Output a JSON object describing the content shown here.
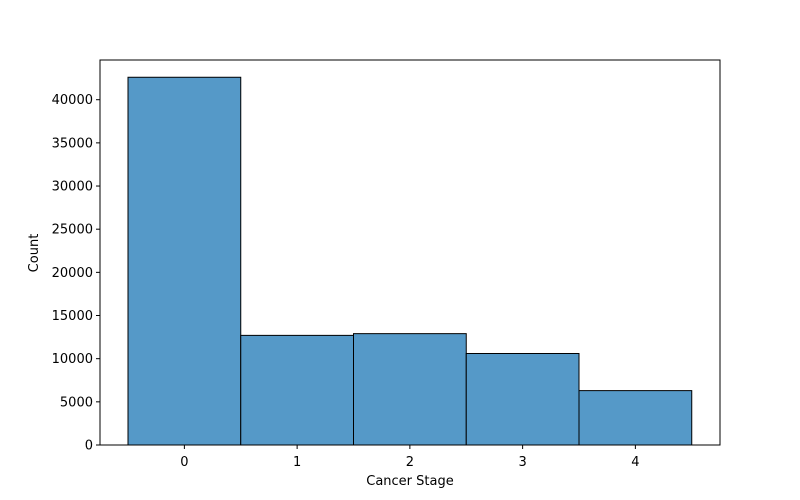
{
  "chart_data": {
    "type": "bar",
    "categories": [
      "0",
      "1",
      "2",
      "3",
      "4"
    ],
    "values": [
      42600,
      12700,
      12900,
      10600,
      6300
    ],
    "title": "",
    "xlabel": "Cancer Stage",
    "ylabel": "Count",
    "ylim": [
      0,
      44600
    ],
    "yticks": [
      0,
      5000,
      10000,
      15000,
      20000,
      25000,
      30000,
      35000,
      40000
    ],
    "grid": false,
    "legend": "none",
    "bar_color": "#5599c8",
    "bar_edge_color": "#000000"
  }
}
